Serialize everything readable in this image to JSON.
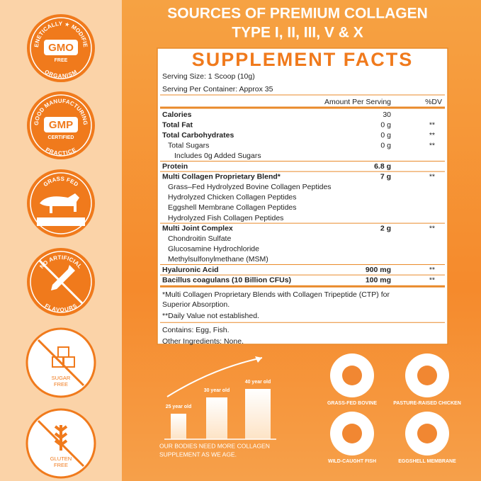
{
  "header": {
    "title_line1": "SOURCES OF PREMIUM COLLAGEN",
    "title_line2": "TYPE I, II, III, V & X"
  },
  "badges": [
    {
      "arc_top": "GENETICALLY ★ MODIFIED",
      "main": "GMO",
      "sub": "FREE",
      "arc_bottom": "ORGANISM"
    },
    {
      "arc_top": "GOOD MANUFACTURING",
      "main": "GMP",
      "sub": "CERTIFIED",
      "arc_bottom": "PRACTICE"
    },
    {
      "arc_top": "GRASS FED"
    },
    {
      "arc_top": "NO ARTIFICIAL",
      "arc_bottom": "FLAVOURS"
    },
    {
      "label_line1": "SUGAR",
      "label_line2": "FREE"
    },
    {
      "label_line1": "GLUTEN",
      "label_line2": "FREE"
    }
  ],
  "facts": {
    "title": "SUPPLEMENT FACTS",
    "serving_size": "Serving Size: 1 Scoop (10g)",
    "servings_per_container": "Serving Per Container:  Approx 35",
    "amount_header": "Amount Per Serving",
    "dv_header": "%DV",
    "rows": [
      [
        "Calories",
        "30",
        ""
      ],
      [
        "Total Fat",
        "0 g",
        "**"
      ],
      [
        "Total Carbohydrates",
        "0 g",
        "**"
      ],
      [
        "Total Sugars",
        "0 g",
        "**"
      ],
      [
        "Includes 0g Added Sugars",
        "",
        ""
      ],
      [
        "Protein",
        "6.8 g",
        ""
      ],
      [
        "Multi Collagen Proprietary Blend*",
        "7 g",
        "**"
      ],
      [
        "Grass–Fed Hydrolyzed Bovine Collagen Peptides",
        "",
        ""
      ],
      [
        "Hydrolyzed Chicken Collagen Peptides",
        "",
        ""
      ],
      [
        "Eggshell Membrane Collagen Peptides",
        "",
        ""
      ],
      [
        "Hydrolyzed Fish Collagen Peptides",
        "",
        ""
      ],
      [
        "Multi Joint Complex",
        "2 g",
        "**"
      ],
      [
        "Chondroitin Sulfate",
        "",
        ""
      ],
      [
        "Glucosamine Hydrochloride",
        "",
        ""
      ],
      [
        "Methylsulfonylmethane (MSM)",
        "",
        ""
      ],
      [
        "Hyaluronic Acid",
        "900 mg",
        "**"
      ],
      [
        "Bacillus coagulans (10 Billion CFUs)",
        "100 mg",
        "**"
      ]
    ],
    "footnote1_line1": "*Multi Collagen Proprietary Blends with Collagen Tripeptide (CTP) for",
    "footnote1_line2": "Superior Absorption.",
    "footnote2": "**Daily Value not established.",
    "contains": "Contains: Egg, Fish.",
    "other_ingredients": "Other Ingredients: None."
  },
  "age_graphic": {
    "labels": [
      "25 year old",
      "30 year old",
      "40 year old"
    ],
    "caption_line1": "OUR BODIES NEED MORE COLLAGEN",
    "caption_line2": "SUPPLEMENT AS WE AGE."
  },
  "sources": [
    "GRASS-FED BOVINE",
    "PASTURE-RAISED CHICKEN",
    "WILD-CAUGHT FISH",
    "EGGSHELL MEMBRANE"
  ]
}
